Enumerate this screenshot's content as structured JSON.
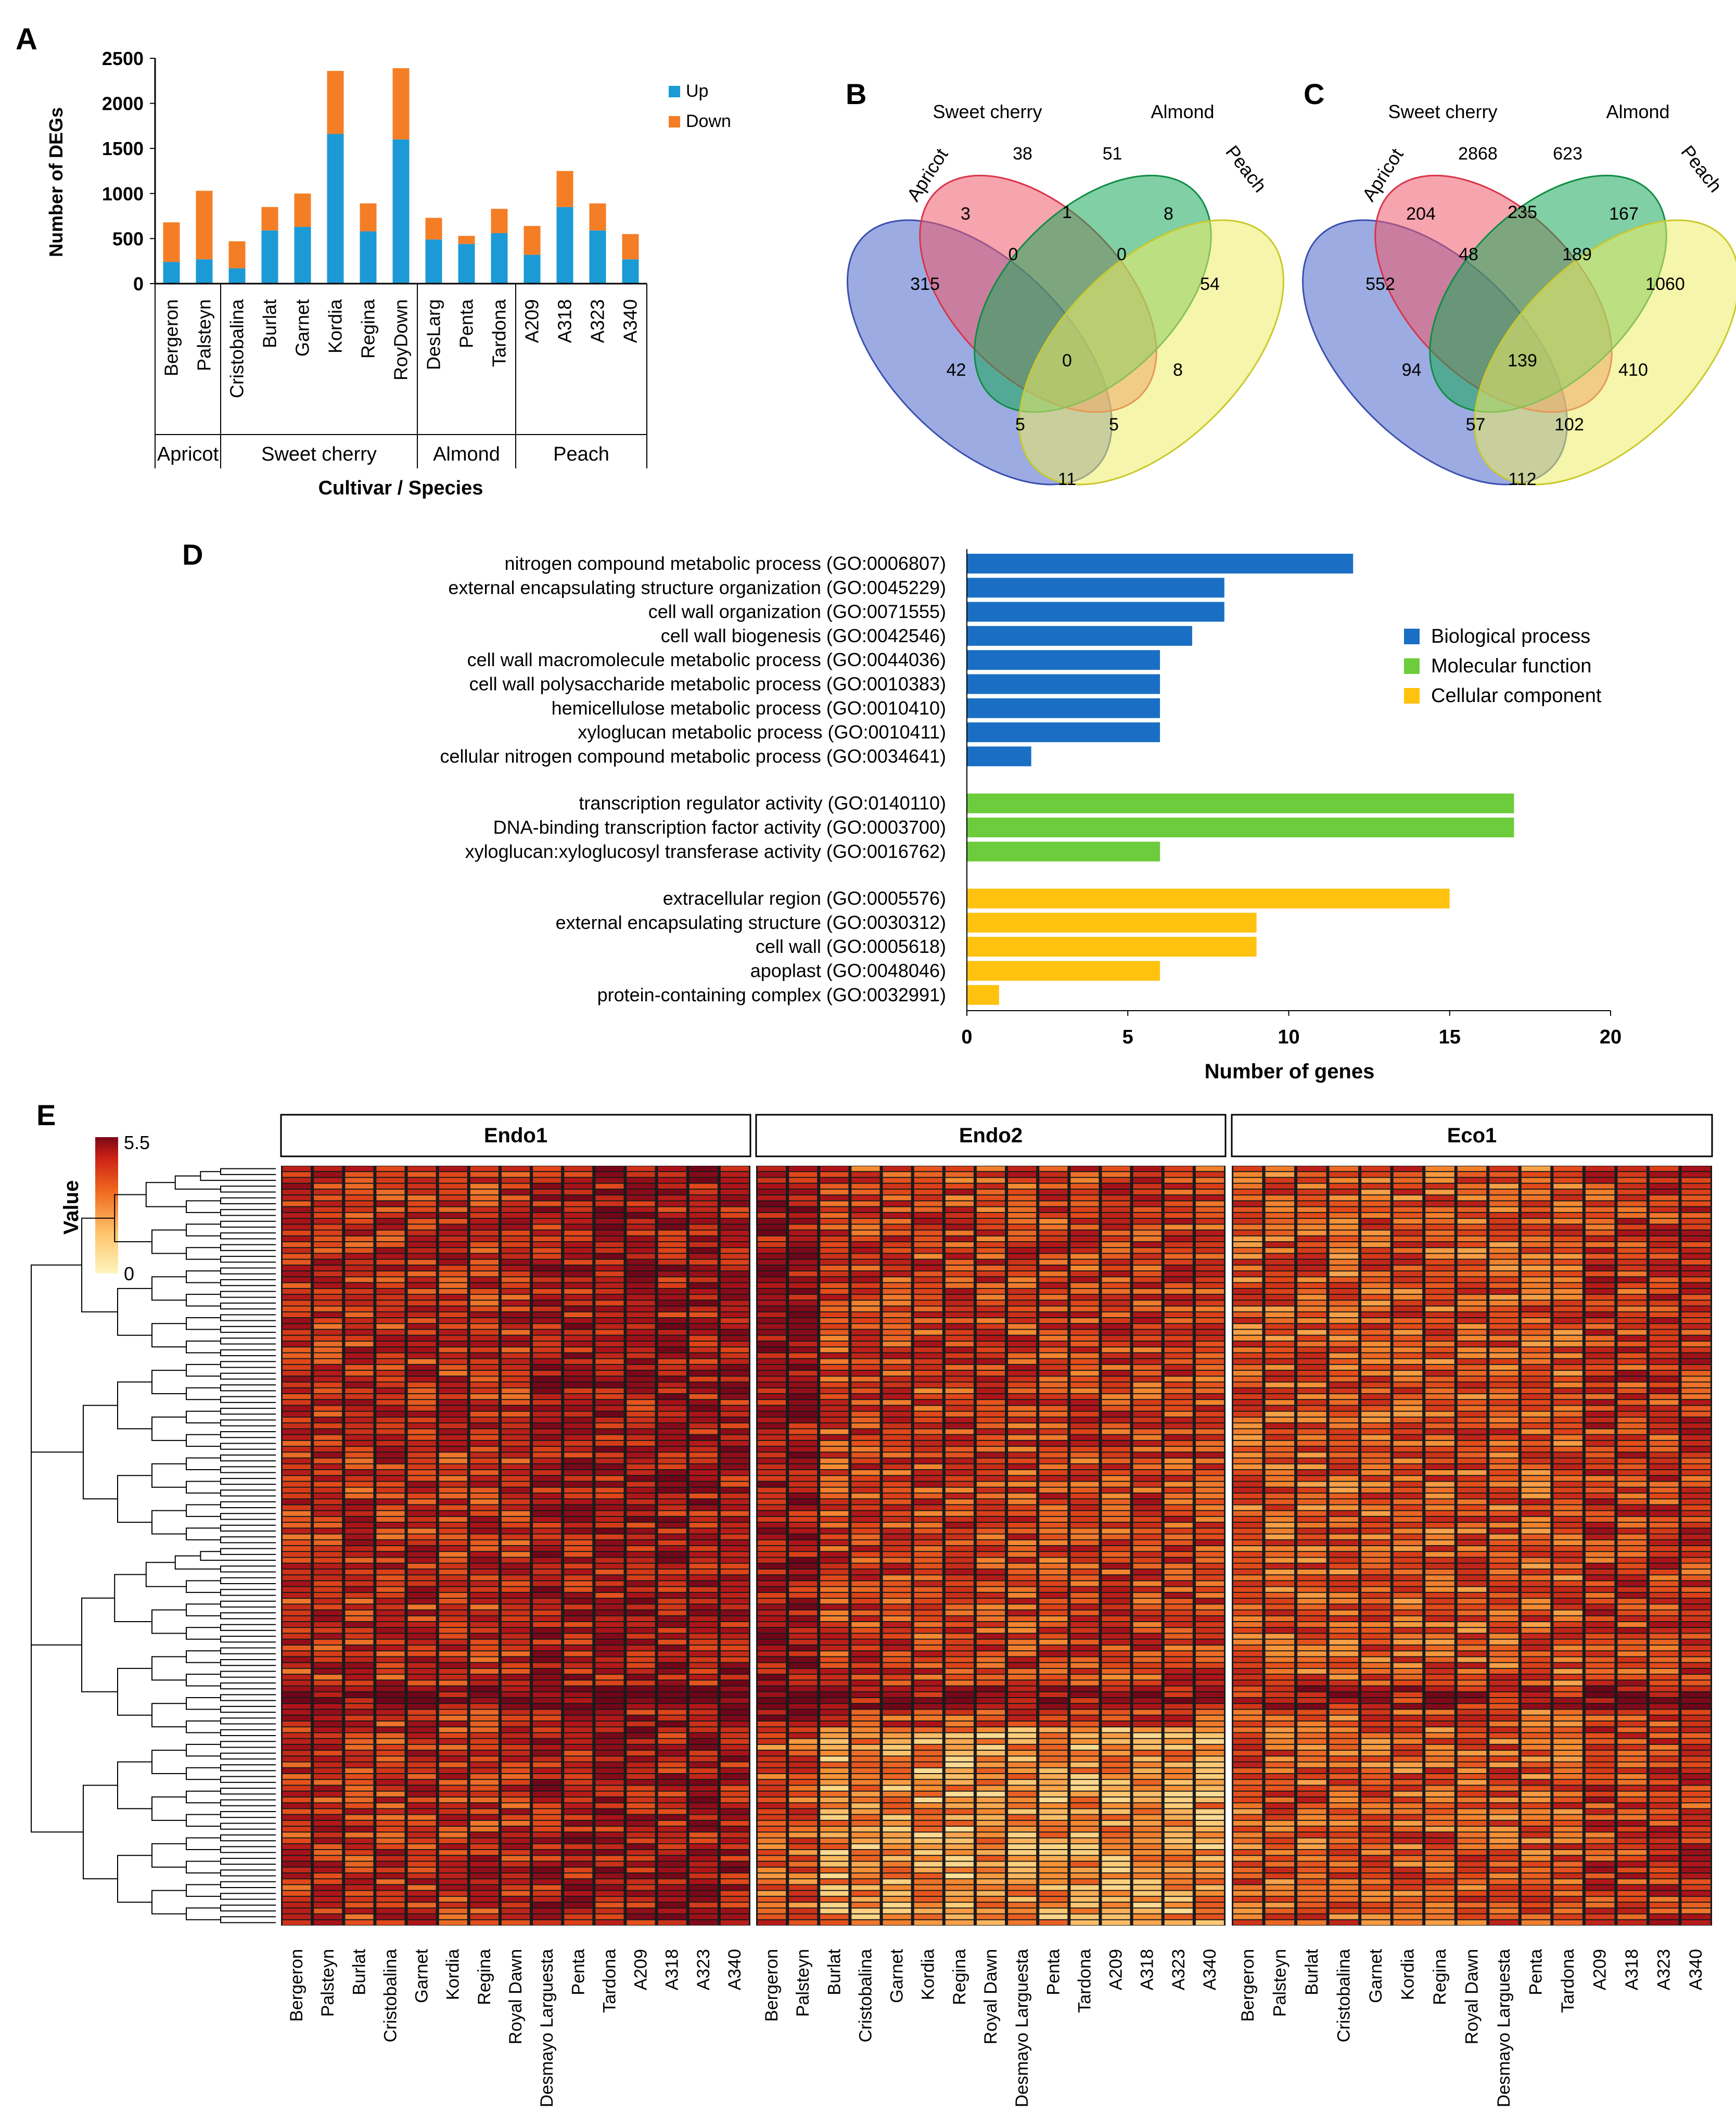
{
  "panels": {
    "A": "A",
    "B": "B",
    "C": "C",
    "D": "D",
    "E": "E"
  },
  "chart_data": [
    {
      "id": "A",
      "type": "bar",
      "stacked": true,
      "ylabel": "Number of DEGs",
      "xlabel": "Cultivar / Species",
      "ylim": [
        0,
        2500
      ],
      "yticks": [
        0,
        500,
        1000,
        1500,
        2000,
        2500
      ],
      "categories": [
        "Bergeron",
        "Palsteyn",
        "Cristobalina",
        "Burlat",
        "Garnet",
        "Kordia",
        "Regina",
        "RoyDown",
        "DesLarg",
        "Penta",
        "Tardona",
        "A209",
        "A318",
        "A323",
        "A340"
      ],
      "series": [
        {
          "name": "Up",
          "color": "#1b9ad6",
          "values": [
            240,
            270,
            170,
            590,
            630,
            1660,
            580,
            1600,
            490,
            440,
            560,
            320,
            850,
            590,
            270
          ]
        },
        {
          "name": "Down",
          "color": "#f47e26",
          "values": [
            440,
            760,
            300,
            260,
            370,
            700,
            310,
            790,
            240,
            90,
            270,
            320,
            400,
            300,
            280
          ]
        }
      ],
      "groups": [
        {
          "name": "Apricot",
          "start": 0,
          "end": 1
        },
        {
          "name": "Sweet cherry",
          "start": 2,
          "end": 7
        },
        {
          "name": "Almond",
          "start": 8,
          "end": 10
        },
        {
          "name": "Peach",
          "start": 11,
          "end": 14
        }
      ]
    },
    {
      "id": "B",
      "type": "venn",
      "sets": [
        "Apricot",
        "Sweet cherry",
        "Almond",
        "Peach"
      ],
      "regions": {
        "A": "315",
        "S": "38",
        "L": "51",
        "P": "54",
        "AS": "3",
        "SL": "1",
        "LP": "8",
        "AP": "11",
        "AL": "42",
        "SP": "8",
        "ASL": "0",
        "SLP": "0",
        "ALP": "5",
        "ASP": "5",
        "ASLP": "0"
      }
    },
    {
      "id": "C",
      "type": "venn",
      "sets": [
        "Apricot",
        "Sweet cherry",
        "Almond",
        "Peach"
      ],
      "regions": {
        "A": "552",
        "S": "2868",
        "L": "623",
        "P": "1060",
        "AS": "204",
        "SL": "235",
        "LP": "167",
        "AP": "112",
        "AL": "94",
        "SP": "410",
        "ASL": "48",
        "SLP": "189",
        "ALP": "57",
        "ASP": "102",
        "ASLP": "139"
      }
    },
    {
      "id": "D",
      "type": "bar",
      "orientation": "horizontal",
      "xlabel": "Number of genes",
      "xlim": [
        0,
        20
      ],
      "xticks": [
        0,
        5,
        10,
        15,
        20
      ],
      "legend": [
        {
          "name": "Biological process",
          "color": "#1a6fc4"
        },
        {
          "name": "Molecular function",
          "color": "#6dcc3c"
        },
        {
          "name": "Cellular component",
          "color": "#ffc20e"
        }
      ],
      "groups": [
        {
          "category": "Biological process",
          "color": "#1a6fc4",
          "terms": [
            {
              "label": "nitrogen compound metabolic process (GO:0006807)",
              "value": 12
            },
            {
              "label": "external encapsulating structure organization (GO:0045229)",
              "value": 8
            },
            {
              "label": "cell wall organization (GO:0071555)",
              "value": 8
            },
            {
              "label": "cell wall biogenesis (GO:0042546)",
              "value": 7
            },
            {
              "label": "cell wall macromolecule metabolic process (GO:0044036)",
              "value": 6
            },
            {
              "label": "cell wall polysaccharide metabolic process (GO:0010383)",
              "value": 6
            },
            {
              "label": "hemicellulose metabolic process (GO:0010410)",
              "value": 6
            },
            {
              "label": "xyloglucan metabolic process (GO:0010411)",
              "value": 6
            },
            {
              "label": "cellular nitrogen compound metabolic process (GO:0034641)",
              "value": 2
            }
          ]
        },
        {
          "category": "Molecular function",
          "color": "#6dcc3c",
          "terms": [
            {
              "label": "transcription regulator activity (GO:0140110)",
              "value": 17
            },
            {
              "label": "DNA-binding transcription factor activity (GO:0003700)",
              "value": 17
            },
            {
              "label": "xyloglucan:xyloglucosyl transferase activity (GO:0016762)",
              "value": 6
            }
          ]
        },
        {
          "category": "Cellular component",
          "color": "#ffc20e",
          "terms": [
            {
              "label": "extracellular region (GO:0005576)",
              "value": 15
            },
            {
              "label": "external encapsulating structure (GO:0030312)",
              "value": 9
            },
            {
              "label": "cell wall (GO:0005618)",
              "value": 9
            },
            {
              "label": "apoplast (GO:0048046)",
              "value": 6
            },
            {
              "label": "protein-containing complex (GO:0032991)",
              "value": 1
            }
          ]
        }
      ]
    },
    {
      "id": "E",
      "type": "heatmap",
      "colorbar_title": "Value",
      "value_range": [
        0,
        5.5
      ],
      "colorbar_max_label": "5.5",
      "colorbar_min_label": "0",
      "panels": [
        "Endo1",
        "Endo2",
        "Eco1"
      ],
      "columns": [
        "Bergeron",
        "Palsteyn",
        "Burlat",
        "Cristobalina",
        "Garnet",
        "Kordia",
        "Regina",
        "Royal Dawn",
        "Desmayo Larguesta",
        "Penta",
        "Tardona",
        "A209",
        "A318",
        "A323",
        "A340"
      ],
      "row_count": 130
    }
  ]
}
